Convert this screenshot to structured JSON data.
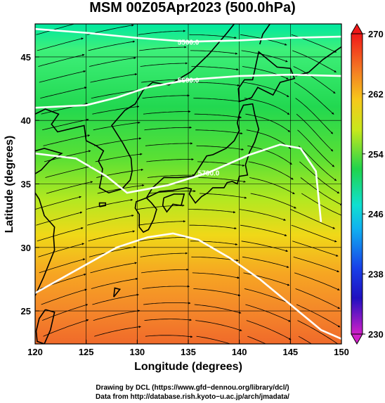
{
  "title": "MSM 00Z05Apr2023 (500.0hPa)",
  "chart_data": {
    "type": "map-field",
    "title": "MSM 00Z05Apr2023 (500.0hPa)",
    "xlabel": "Longitude (degrees)",
    "ylabel": "Latitude  (degrees)",
    "xlim": [
      120,
      150
    ],
    "ylim": [
      22.4,
      47.6
    ],
    "xticks": [
      "120",
      "125",
      "130",
      "135",
      "140",
      "145",
      "150"
    ],
    "yticks": [
      "25",
      "30",
      "35",
      "40",
      "45"
    ],
    "colorbar": {
      "ticks": [
        "270",
        "262",
        "254",
        "246",
        "238",
        "230"
      ],
      "range": [
        230,
        270
      ]
    },
    "contours": [
      {
        "label": "5500.0",
        "points": [
          [
            120,
            47.2
          ],
          [
            125,
            46.9
          ],
          [
            130,
            46.5
          ],
          [
            135,
            46.2
          ],
          [
            140,
            46.3
          ],
          [
            145,
            46.5
          ],
          [
            150,
            46.6
          ]
        ]
      },
      {
        "label": "5600.0",
        "points": [
          [
            120,
            41.0
          ],
          [
            125,
            41.2
          ],
          [
            128,
            41.8
          ],
          [
            131,
            42.6
          ],
          [
            135,
            43.2
          ],
          [
            140,
            43.5
          ],
          [
            145,
            43.6
          ],
          [
            150,
            43.5
          ]
        ]
      },
      {
        "label": "5700.0",
        "points": [
          [
            120,
            37.4
          ],
          [
            124,
            37.0
          ],
          [
            127,
            35.6
          ],
          [
            129,
            34.3
          ],
          [
            133,
            34.9
          ],
          [
            137,
            35.9
          ],
          [
            141,
            37.3
          ],
          [
            144,
            38.1
          ],
          [
            146,
            37.8
          ],
          [
            147.5,
            36.0
          ],
          [
            148,
            32.0
          ]
        ]
      },
      {
        "label": "",
        "points": [
          [
            120,
            26.4
          ],
          [
            124,
            28.2
          ],
          [
            128,
            30.0
          ],
          [
            131,
            30.8
          ],
          [
            133.5,
            31.1
          ],
          [
            136,
            30.6
          ],
          [
            139,
            29.2
          ],
          [
            142,
            27.5
          ],
          [
            145,
            25.5
          ],
          [
            148,
            23.5
          ],
          [
            150,
            22.8
          ]
        ]
      }
    ]
  },
  "credits": {
    "line1": "Drawing by DCL (https://www.gfd−dennou.org/library/dcl/)",
    "line2": "Data from http://database.rish.kyoto−u.ac.jp/arch/jmadata/"
  }
}
